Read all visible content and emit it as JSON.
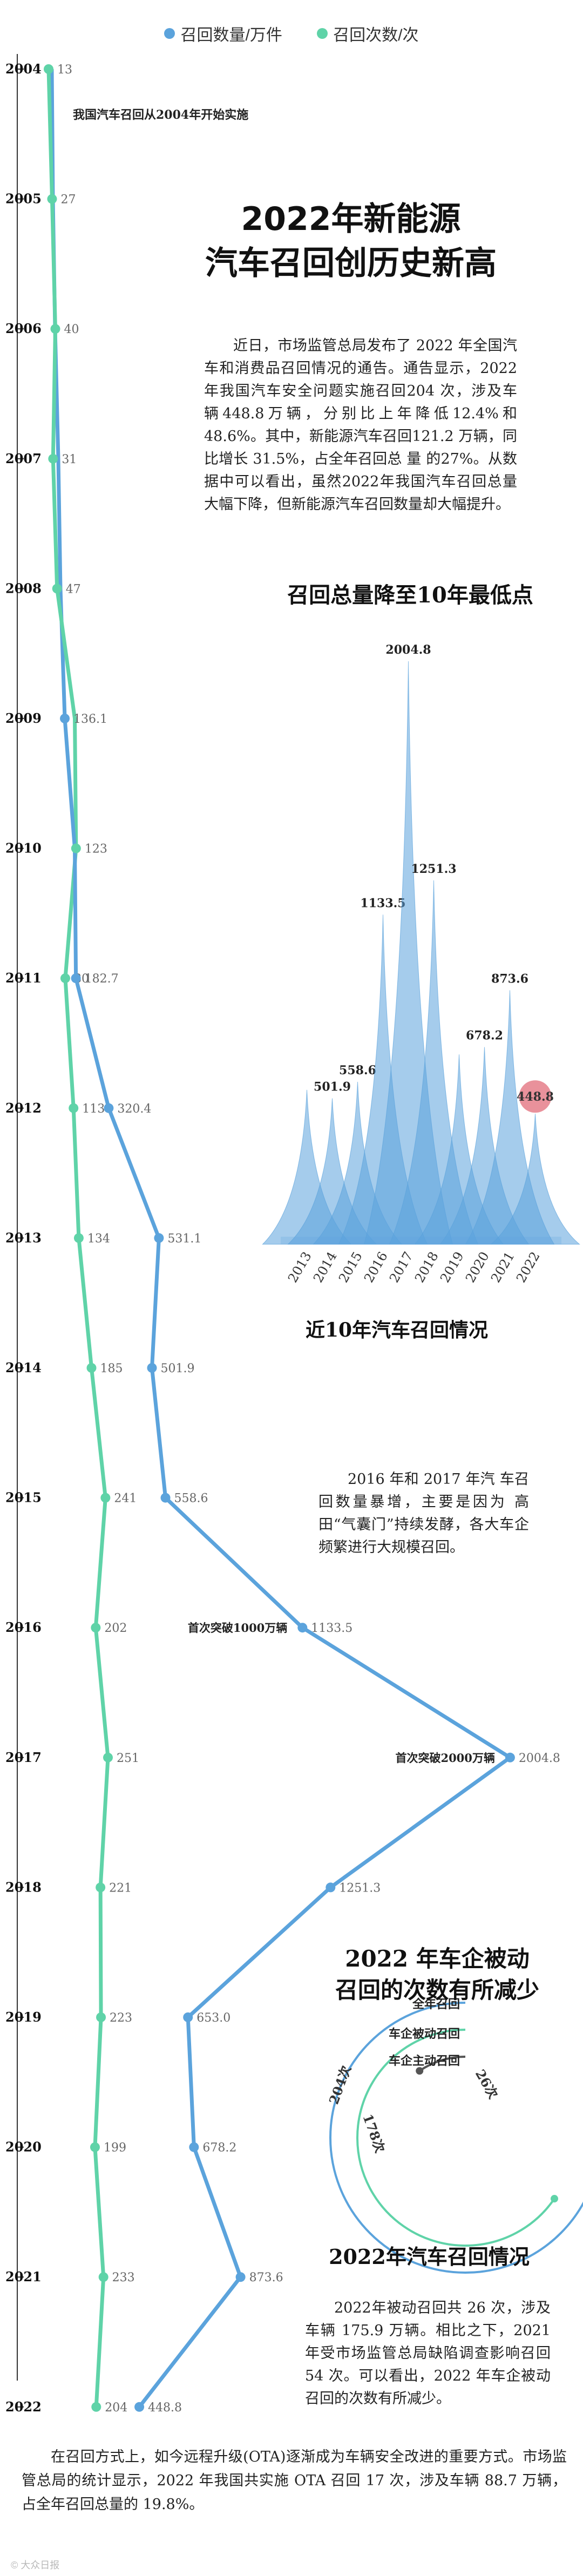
{
  "legend": [
    {
      "label": "召回数量/万件",
      "color": "#5ba3dc"
    },
    {
      "label": "召回次数/次",
      "color": "#5fd3a8"
    }
  ],
  "colors": {
    "volume": "#5ba3dc",
    "count": "#5fd3a8",
    "axis": "#333333",
    "highlight": "#e57e8a"
  },
  "headline": {
    "line1": "2022年新能源",
    "line2": "汽车召回创历史新高"
  },
  "intro": "近日，市场监管总局发布了 2022 年全国汽车和消费品召回情况的通告。通告显示，2022 年我国汽车安全问题实施召回204 次，涉及车 辆448.8万辆，分别比上年降低12.4%和 48.6%。其中，新能源汽车召回121.2 万辆，同比增长 31.5%，占全年召回总 量 的27%。从数据中可以看出，虽然2022年我国汽车召回总量大幅下降，但新能源汽车召回数量却大幅提升。",
  "start_note": "我国汽车召回从2004年开始实施",
  "milestones": {
    "m1000": "首次突破1000万辆",
    "m2000": "首次突破2000万辆"
  },
  "section_lowest": "召回总量降至10年最低点",
  "section_10yr": "近10年汽车召回情况",
  "note_2016": "2016 年和 2017 年汽 车召回数量暴增，主要是因为 高田“气囊门”持续发酵，各大车企频繁进行大规模召回。",
  "section_passive": {
    "line1": "2022 年车企被动",
    "line2": "召回的次数有所减少"
  },
  "radial": {
    "labels": [
      "全年召回",
      "车企被动召回",
      "车企主动召回"
    ],
    "values": [
      "204次",
      "26次",
      "178次"
    ]
  },
  "section_2022": "2022年汽车召回情况",
  "text_2022": "2022年被动召回共 26 次，涉及车辆 175.9 万辆。相比之下，2021年受市场监管总局缺陷调查影响召回 54 次。可以看出，2022 年车企被动召回的次数有所减少。",
  "footer": "在召回方式上，如今远程升级(OTA)逐渐成为车辆安全改进的重要方式。市场监管总局的统计显示，2022 年我国共实施 OTA 召回 17 次，涉及车辆 88.7 万辆，占全年召回总量的 19.8%。",
  "watermark": "© 大众日报",
  "chart_data": [
    {
      "type": "line",
      "x": [
        "2004",
        "2005",
        "2006",
        "2007",
        "2008",
        "2009",
        "2010",
        "2011",
        "2012",
        "2013",
        "2014",
        "2015",
        "2016",
        "2017",
        "2018",
        "2019",
        "2020",
        "2021",
        "2022"
      ],
      "series": [
        {
          "name": "召回数量/万件",
          "values": [
            null,
            null,
            null,
            null,
            null,
            136.1,
            null,
            182.7,
            320.4,
            531.1,
            501.9,
            558.6,
            1133.5,
            2004.8,
            1251.3,
            653.0,
            678.2,
            873.6,
            448.8
          ]
        },
        {
          "name": "召回次数/次",
          "values": [
            13,
            27,
            40,
            31,
            47,
            null,
            123,
            80,
            113,
            134,
            185,
            241,
            202,
            251,
            221,
            223,
            199,
            233,
            204
          ]
        }
      ],
      "value_labels": {
        "volume": [
          "",
          "",
          "",
          "",
          "",
          "136.1",
          "",
          "182.7",
          "320.4",
          "531.1",
          "501.9",
          "558.6",
          "1133.5",
          "2004.8",
          "1251.3",
          "653.0",
          "678.2",
          "873.6",
          "448.8"
        ],
        "count": [
          "13",
          "27",
          "40",
          "31",
          "47",
          "",
          "123",
          "80",
          "113",
          "134",
          "185",
          "241",
          "202",
          "251",
          "221",
          "223",
          "199",
          "233",
          "204"
        ]
      }
    },
    {
      "type": "area",
      "title": "近10年汽车召回情况",
      "categories": [
        "2013",
        "2014",
        "2015",
        "2016",
        "2017",
        "2018",
        "2019",
        "2020",
        "2021",
        "2022"
      ],
      "values": [
        531.1,
        501.9,
        558.6,
        1133.5,
        2004.8,
        1251.3,
        653.0,
        678.2,
        873.6,
        448.8
      ],
      "labels": [
        "",
        "501.9",
        "558.6",
        "1133.5",
        "2004.8",
        "1251.3",
        "",
        "678.2",
        "873.6",
        "448.8"
      ],
      "highlight": "2022"
    }
  ]
}
